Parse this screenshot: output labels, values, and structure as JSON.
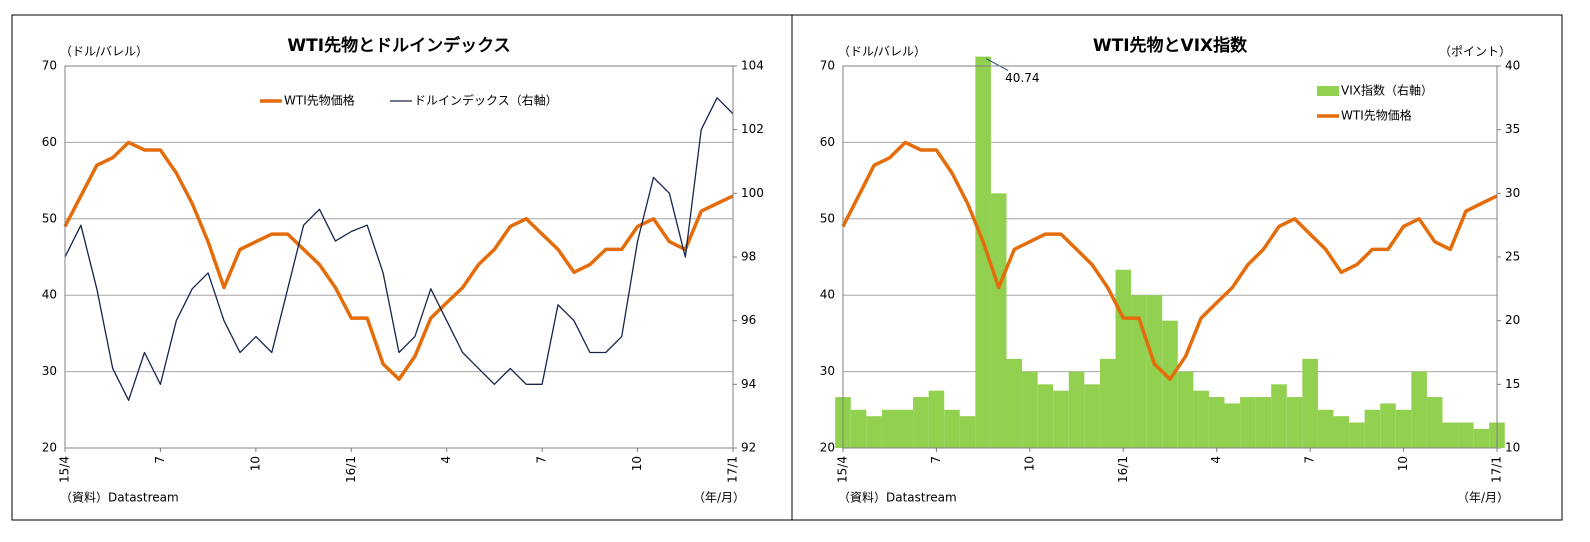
{
  "chart_data": [
    {
      "type": "line",
      "title": "WTI先物とドルインデックス",
      "y_label": "（ドル/バレル）",
      "source": "（資料）Datastream",
      "x_label": "（年/月）",
      "legend": "top",
      "x": [
        0,
        0.5,
        1,
        1.5,
        2,
        2.5,
        3,
        3.5,
        4,
        4.5,
        5,
        5.5,
        6,
        6.5,
        7,
        7.5,
        8,
        8.5,
        9,
        9.5,
        10,
        10.5,
        11,
        11.5,
        12,
        12.5,
        13,
        13.5,
        14,
        14.5,
        15,
        15.5,
        16,
        16.5,
        17,
        17.5,
        18,
        18.5,
        19,
        19.5,
        20,
        20.5,
        21
      ],
      "xlim": [
        0,
        21
      ],
      "xticks": [
        {
          "value": 0,
          "label": "15/4"
        },
        {
          "value": 3,
          "label": "7"
        },
        {
          "value": 6,
          "label": "10"
        },
        {
          "value": 9,
          "label": "16/1"
        },
        {
          "value": 12,
          "label": "4"
        },
        {
          "value": 15,
          "label": "7"
        },
        {
          "value": 18,
          "label": "10"
        },
        {
          "value": 21,
          "label": "17/1"
        }
      ],
      "ylim": [
        20,
        70
      ],
      "yticks": [
        20,
        30,
        40,
        50,
        60,
        70
      ],
      "y2lim": [
        92,
        104
      ],
      "y2ticks": [
        92,
        94,
        96,
        98,
        100,
        102,
        104
      ],
      "grid": true,
      "series": [
        {
          "name": "WTI先物価格",
          "color": "#e46c0a",
          "type": "line",
          "width": 3.5,
          "values": [
            49,
            53,
            57,
            58,
            60,
            59,
            59,
            56,
            52,
            47,
            41,
            46,
            47,
            48,
            48,
            46,
            44,
            41,
            37,
            37,
            31,
            29,
            32,
            37,
            39,
            41,
            44,
            46,
            49,
            50,
            48,
            46,
            43,
            44,
            46,
            46,
            49,
            50,
            47,
            46,
            51,
            52,
            53
          ]
        },
        {
          "name": "ドルインデックス（右軸）",
          "color": "#17244d",
          "type": "line",
          "width": 1.3,
          "axis": "y2",
          "values": [
            98,
            99,
            97,
            94.5,
            93.5,
            95,
            94,
            96,
            97,
            97.5,
            96,
            95,
            95.5,
            95,
            97,
            99,
            99.5,
            98.5,
            98.8,
            99,
            97.5,
            95,
            95.5,
            97,
            96,
            95,
            94.5,
            94,
            94.5,
            94,
            94,
            96.5,
            96,
            95,
            95,
            95.5,
            98.5,
            100.5,
            100,
            98,
            102,
            103,
            102.5
          ]
        }
      ]
    },
    {
      "type": "combo",
      "title": "WTI先物とVIX指数",
      "y_label": "（ドル/バレル）",
      "y2_label": "（ポイント）",
      "source": "（資料）Datastream",
      "x_label": "（年/月）",
      "legend": "upper right",
      "x": [
        0,
        0.5,
        1,
        1.5,
        2,
        2.5,
        3,
        3.5,
        4,
        4.5,
        5,
        5.5,
        6,
        6.5,
        7,
        7.5,
        8,
        8.5,
        9,
        9.5,
        10,
        10.5,
        11,
        11.5,
        12,
        12.5,
        13,
        13.5,
        14,
        14.5,
        15,
        15.5,
        16,
        16.5,
        17,
        17.5,
        18,
        18.5,
        19,
        19.5,
        20,
        20.5,
        21
      ],
      "xlim": [
        0,
        21
      ],
      "xticks": [
        {
          "value": 0,
          "label": "15/4"
        },
        {
          "value": 3,
          "label": "7"
        },
        {
          "value": 6,
          "label": "10"
        },
        {
          "value": 9,
          "label": "16/1"
        },
        {
          "value": 12,
          "label": "4"
        },
        {
          "value": 15,
          "label": "7"
        },
        {
          "value": 18,
          "label": "10"
        },
        {
          "value": 21,
          "label": "17/1"
        }
      ],
      "ylim": [
        20,
        70
      ],
      "yticks": [
        20,
        30,
        40,
        50,
        60,
        70
      ],
      "y2lim": [
        10,
        40
      ],
      "y2ticks": [
        10,
        15,
        20,
        25,
        30,
        35,
        40
      ],
      "grid": true,
      "series": [
        {
          "name": "VIX指数（右軸）",
          "color": "#92d050",
          "type": "bar",
          "axis": "y2",
          "values": [
            14,
            13,
            12.5,
            13,
            13,
            14,
            14.5,
            13,
            12.5,
            40.74,
            30,
            17,
            16,
            15,
            14.5,
            16,
            15,
            17,
            24,
            22,
            22,
            20,
            16,
            14.5,
            14,
            13.5,
            14,
            14,
            15,
            14,
            17,
            13,
            12.5,
            12,
            13,
            13.5,
            13,
            16,
            14,
            12,
            12,
            11.5,
            12
          ],
          "value_labels": [
            null,
            null,
            null,
            null,
            null,
            null,
            null,
            null,
            null,
            "40.74",
            null,
            null,
            null,
            null,
            null,
            null,
            null,
            null,
            null,
            null,
            null,
            null,
            null,
            null,
            null,
            null,
            null,
            null,
            null,
            null,
            null,
            null,
            null,
            null,
            null,
            null,
            null,
            null,
            null,
            null,
            null,
            null,
            null
          ]
        },
        {
          "name": "WTI先物価格",
          "color": "#e46c0a",
          "type": "line",
          "width": 3.5,
          "values": [
            49,
            53,
            57,
            58,
            60,
            59,
            59,
            56,
            52,
            47,
            41,
            46,
            47,
            48,
            48,
            46,
            44,
            41,
            37,
            37,
            31,
            29,
            32,
            37,
            39,
            41,
            44,
            46,
            49,
            50,
            48,
            46,
            43,
            44,
            46,
            46,
            49,
            50,
            47,
            46,
            51,
            52,
            53
          ]
        }
      ]
    }
  ]
}
